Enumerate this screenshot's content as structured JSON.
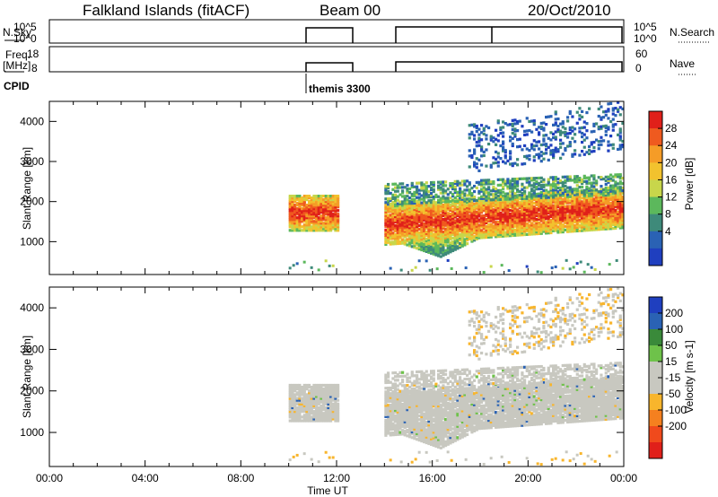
{
  "header": {
    "title": "Falkland Islands (fitACF)",
    "beam": "Beam 00",
    "date": "20/Oct/2010"
  },
  "aux_panels": {
    "nsky_label": "N.Sky",
    "nsky_ticks": [
      "10^5",
      "10^0"
    ],
    "nsearch_label": "N.Search",
    "nsearch_ticks": [
      "10^5",
      "10^0"
    ],
    "freq_label_1": "Freq.",
    "freq_label_2": "[MHz]",
    "freq_ticks": [
      "18",
      "8"
    ],
    "nave_label": "Nave",
    "nave_ticks": [
      "60",
      "0"
    ],
    "cpid_label": "CPID",
    "cpid_value": "themis 3300"
  },
  "colors": {
    "power": [
      "#1f3fbf",
      "#2a62b4",
      "#3e8a7a",
      "#5cb85c",
      "#c8d64b",
      "#f2c22e",
      "#f59c27",
      "#ef5a1f",
      "#e0201a"
    ],
    "velocity": [
      "#e0201a",
      "#f04a1c",
      "#f5801f",
      "#f8b52c",
      "#c8c8c0",
      "#c8c8c0",
      "#6ec24a",
      "#3a8a3a",
      "#2a62b4",
      "#1f3fbf"
    ],
    "gray": "#c8c8c0"
  },
  "chart_data": [
    {
      "type": "heatmap",
      "name": "Power",
      "ylabel": "Slant Range [km]",
      "colorbar_label": "Power [dB]",
      "colorbar_ticks": [
        "28",
        "24",
        "20",
        "16",
        "12",
        "8",
        "4"
      ],
      "x_ticks": [
        "00:00",
        "04:00",
        "08:00",
        "12:00",
        "16:00",
        "20:00",
        "00:00"
      ],
      "y_ticks": [
        "4000",
        "3000",
        "2000",
        "1000"
      ],
      "xlim": [
        0,
        24
      ],
      "ylim": [
        180,
        4500
      ],
      "scatter_bands": [
        {
          "t0": 10.0,
          "t1": 12.0,
          "r0": 1250,
          "r1": 2150,
          "level": "high"
        },
        {
          "t0": 14.0,
          "t1": 24.0,
          "r0": 900,
          "r1": 1900,
          "level": "high",
          "slope": 420
        },
        {
          "t0": 14.0,
          "t1": 24.0,
          "r0": 1900,
          "r1": 2400,
          "level": "mid",
          "slope": 250
        },
        {
          "t0": 17.5,
          "t1": 24.0,
          "r0": 2700,
          "r1": 3900,
          "level": "low",
          "slope": 600
        }
      ]
    },
    {
      "type": "heatmap",
      "name": "Velocity",
      "ylabel": "Slant Range [km]",
      "colorbar_label": "Velocity [m s-1]",
      "colorbar_ticks": [
        "200",
        "100",
        "50",
        "15",
        "-15",
        "-50",
        "-100",
        "-200"
      ],
      "x_ticks": [
        "00:00",
        "04:00",
        "08:00",
        "12:00",
        "16:00",
        "20:00",
        "00:00"
      ],
      "y_ticks": [
        "4000",
        "3000",
        "2000",
        "1000"
      ],
      "xlim": [
        0,
        24
      ],
      "ylim": [
        180,
        4500
      ],
      "xlabel": "Time UT"
    }
  ]
}
